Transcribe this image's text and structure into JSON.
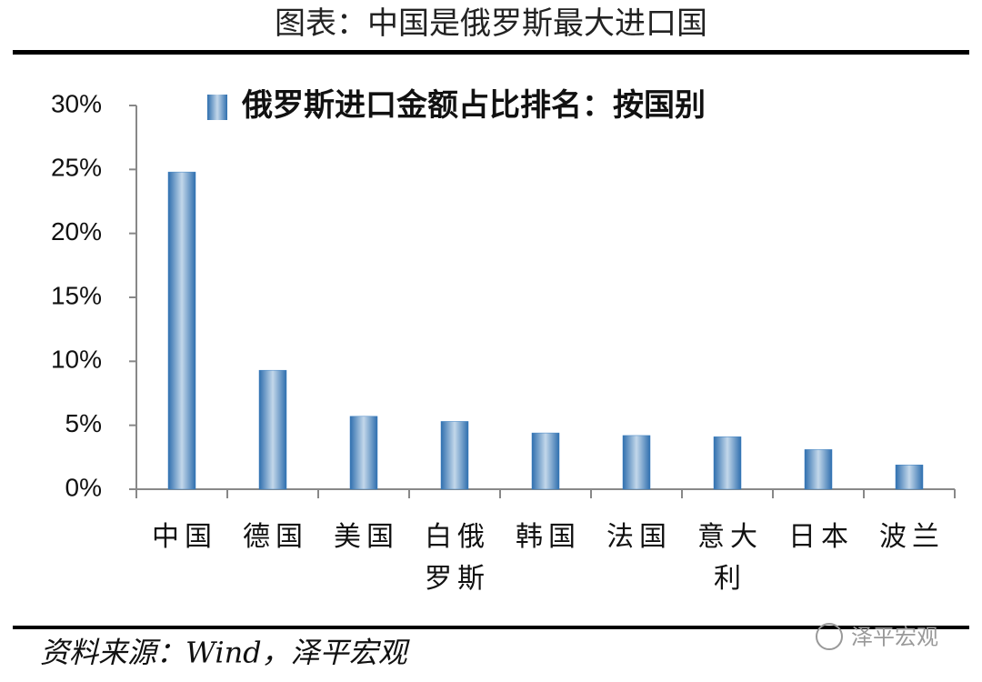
{
  "header": {
    "title": "图表：中国是俄罗斯最大进口国"
  },
  "chart_data": {
    "type": "bar",
    "series_name": "俄罗斯进口金额占比排名：按国别",
    "categories": [
      "中国",
      "德国",
      "美国",
      "白俄罗斯",
      "韩国",
      "法国",
      "意大利",
      "日本",
      "波兰"
    ],
    "values": [
      24.8,
      9.3,
      5.7,
      5.3,
      4.4,
      4.2,
      4.1,
      3.1,
      1.9
    ],
    "color": "#3a7fc1",
    "ylim": [
      0,
      30
    ],
    "yticks": [
      {
        "value": 0,
        "label": "0%"
      },
      {
        "value": 5,
        "label": "5%"
      },
      {
        "value": 10,
        "label": "10%"
      },
      {
        "value": 15,
        "label": "15%"
      },
      {
        "value": 20,
        "label": "20%"
      },
      {
        "value": 25,
        "label": "25%"
      },
      {
        "value": 30,
        "label": "30%"
      }
    ],
    "grid": false,
    "legend": "top"
  },
  "footer": {
    "source": "资料来源：Wind，泽平宏观",
    "watermark": "泽平宏观"
  }
}
